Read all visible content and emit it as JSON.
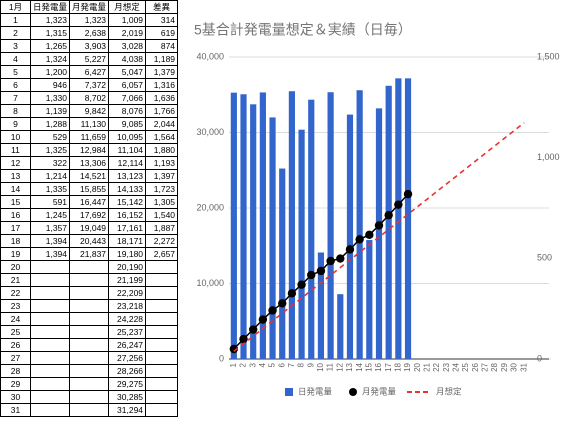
{
  "table": {
    "header": [
      "1月",
      "日発電量",
      "月発電量",
      "月想定",
      "差異"
    ],
    "rows": [
      [
        "1",
        "1,323",
        "1,323",
        "1,009",
        "314"
      ],
      [
        "2",
        "1,315",
        "2,638",
        "2,019",
        "619"
      ],
      [
        "3",
        "1,265",
        "3,903",
        "3,028",
        "874"
      ],
      [
        "4",
        "1,324",
        "5,227",
        "4,038",
        "1,189"
      ],
      [
        "5",
        "1,200",
        "6,427",
        "5,047",
        "1,379"
      ],
      [
        "6",
        "946",
        "7,372",
        "6,057",
        "1,316"
      ],
      [
        "7",
        "1,330",
        "8,702",
        "7,066",
        "1,636"
      ],
      [
        "8",
        "1,139",
        "9,842",
        "8,076",
        "1,766"
      ],
      [
        "9",
        "1,288",
        "11,130",
        "9,085",
        "2,044"
      ],
      [
        "10",
        "529",
        "11,659",
        "10,095",
        "1,564"
      ],
      [
        "11",
        "1,325",
        "12,984",
        "11,104",
        "1,880"
      ],
      [
        "12",
        "322",
        "13,306",
        "12,114",
        "1,193"
      ],
      [
        "13",
        "1,214",
        "14,521",
        "13,123",
        "1,397"
      ],
      [
        "14",
        "1,335",
        "15,855",
        "14,133",
        "1,723"
      ],
      [
        "15",
        "591",
        "16,447",
        "15,142",
        "1,305"
      ],
      [
        "16",
        "1,245",
        "17,692",
        "16,152",
        "1,540"
      ],
      [
        "17",
        "1,357",
        "19,049",
        "17,161",
        "1,887"
      ],
      [
        "18",
        "1,394",
        "20,443",
        "18,171",
        "2,272"
      ],
      [
        "19",
        "1,394",
        "21,837",
        "19,180",
        "2,657"
      ],
      [
        "20",
        null,
        null,
        "20,190",
        null
      ],
      [
        "21",
        null,
        null,
        "21,199",
        null
      ],
      [
        "22",
        null,
        null,
        "22,209",
        null
      ],
      [
        "23",
        null,
        null,
        "23,218",
        null
      ],
      [
        "24",
        null,
        null,
        "24,228",
        null
      ],
      [
        "25",
        null,
        null,
        "25,237",
        null
      ],
      [
        "26",
        null,
        null,
        "26,247",
        null
      ],
      [
        "27",
        null,
        null,
        "27,256",
        null
      ],
      [
        "28",
        null,
        null,
        "28,266",
        null
      ],
      [
        "29",
        null,
        null,
        "29,275",
        null
      ],
      [
        "30",
        null,
        null,
        "30,285",
        null
      ],
      [
        "31",
        null,
        null,
        "31,294",
        null
      ]
    ]
  },
  "chart_data": {
    "type": "combo",
    "title": "5基合計発電量想定＆実績（日毎）",
    "categories": [
      1,
      2,
      3,
      4,
      5,
      6,
      7,
      8,
      9,
      10,
      11,
      12,
      13,
      14,
      15,
      16,
      17,
      18,
      19,
      20,
      21,
      22,
      23,
      24,
      25,
      26,
      27,
      28,
      29,
      30,
      31
    ],
    "ylim": [
      0,
      40000
    ],
    "yticks": [
      0,
      {
        "value": 10000,
        "label": "10,000"
      },
      {
        "value": 20000,
        "label": "20,000"
      },
      {
        "value": 30000,
        "label": "30,000"
      },
      {
        "value": 40000,
        "label": "40,000"
      }
    ],
    "y2lim": [
      0,
      1500
    ],
    "y2ticks": [
      0,
      500,
      {
        "value": 1000,
        "label": "1,000"
      },
      {
        "value": 1500,
        "label": "1,500"
      }
    ],
    "grid": true,
    "legend": "bottom",
    "series": [
      {
        "name": "日発電量",
        "type": "bar",
        "axis": "y2",
        "color": "#3366cc",
        "values": [
          1323,
          1315,
          1265,
          1324,
          1200,
          946,
          1330,
          1139,
          1288,
          529,
          1325,
          322,
          1214,
          1335,
          591,
          1245,
          1357,
          1394,
          1394,
          null,
          null,
          null,
          null,
          null,
          null,
          null,
          null,
          null,
          null,
          null,
          null
        ]
      },
      {
        "name": "月発電量",
        "type": "line",
        "marker": "circle",
        "color": "#000000",
        "values": [
          1323,
          2638,
          3903,
          5227,
          6427,
          7372,
          8702,
          9842,
          11130,
          11659,
          12984,
          13306,
          14521,
          15855,
          16447,
          17692,
          19049,
          20443,
          21837,
          null,
          null,
          null,
          null,
          null,
          null,
          null,
          null,
          null,
          null,
          null,
          null
        ]
      },
      {
        "name": "月想定",
        "type": "line",
        "dashed": true,
        "color": "#e8332f",
        "values": [
          1009,
          2019,
          3028,
          4038,
          5047,
          6057,
          7066,
          8076,
          9085,
          10095,
          11104,
          12114,
          13123,
          14133,
          15142,
          16152,
          17161,
          18171,
          19180,
          20190,
          21199,
          22209,
          23218,
          24228,
          25237,
          26247,
          27256,
          28266,
          29275,
          30285,
          31294
        ]
      }
    ]
  }
}
